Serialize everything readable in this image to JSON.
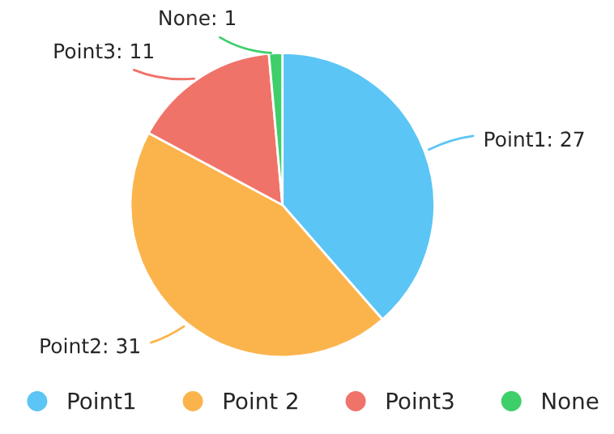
{
  "chart_data": {
    "type": "pie",
    "categories": [
      "Point1",
      "Point 2",
      "Point3",
      "None"
    ],
    "values": [
      27,
      31,
      11,
      1
    ],
    "colors": [
      "#5bc5f5",
      "#fbb44c",
      "#f0736a",
      "#3ecf6a"
    ],
    "value_labels": [
      "Point1: 27",
      "Point2: 31",
      "Point3: 11",
      "None: 1"
    ],
    "legend": "bottom"
  }
}
